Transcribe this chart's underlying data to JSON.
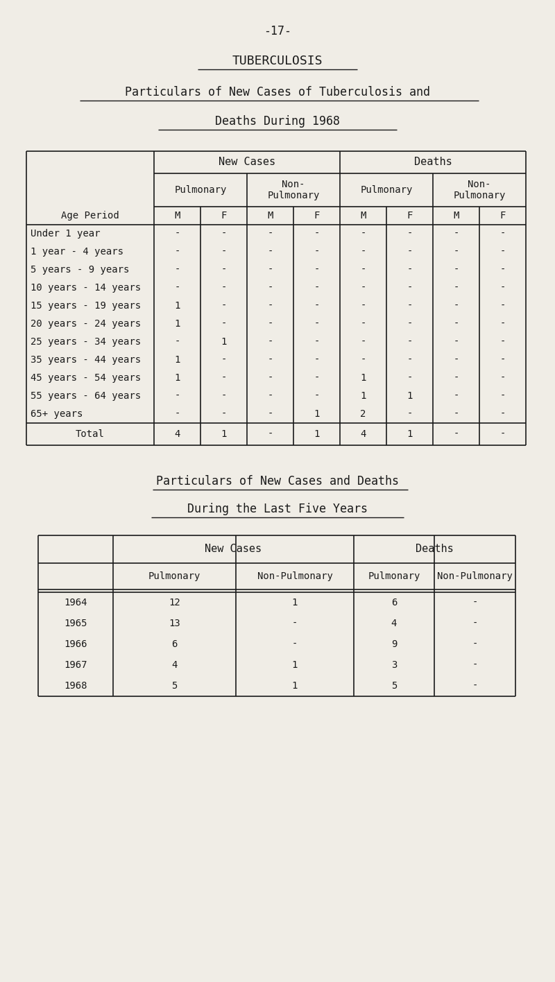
{
  "bg_color": "#f0ede6",
  "text_color": "#1a1a1a",
  "line_color": "#1a1a1a",
  "page_number": "-17-",
  "title1": "TUBERCULOSIS",
  "title2": "Particulars of New Cases of Tuberculosis and",
  "title3": "Deaths During 1968",
  "title4": "Particulars of New Cases and Deaths",
  "title5": "During the Last Five Years",
  "table1": {
    "age_periods": [
      "Under 1 year",
      "1 year - 4 years",
      "5 years - 9 years",
      "10 years - 14 years",
      "15 years - 19 years",
      "20 years - 24 years",
      "25 years - 34 years",
      "35 years - 44 years",
      "45 years - 54 years",
      "55 years - 64 years",
      "65+ years",
      "Total"
    ],
    "data": {
      "new_cases_pulmonary_M": [
        "-",
        "-",
        "-",
        "-",
        "1",
        "1",
        "-",
        "1",
        "1",
        "-",
        "-",
        "4"
      ],
      "new_cases_pulmonary_F": [
        "-",
        "-",
        "-",
        "-",
        "-",
        "-",
        "1",
        "-",
        "-",
        "-",
        "-",
        "1"
      ],
      "new_cases_nonpulmonary_M": [
        "-",
        "-",
        "-",
        "-",
        "-",
        "-",
        "-",
        "-",
        "-",
        "-",
        "-",
        "-"
      ],
      "new_cases_nonpulmonary_F": [
        "-",
        "-",
        "-",
        "-",
        "-",
        "-",
        "-",
        "-",
        "-",
        "-",
        "1",
        "1"
      ],
      "deaths_pulmonary_M": [
        "-",
        "-",
        "-",
        "-",
        "-",
        "-",
        "-",
        "-",
        "1",
        "1",
        "2",
        "4"
      ],
      "deaths_pulmonary_F": [
        "-",
        "-",
        "-",
        "-",
        "-",
        "-",
        "-",
        "-",
        "-",
        "1",
        "-",
        "1"
      ],
      "deaths_nonpulmonary_M": [
        "-",
        "-",
        "-",
        "-",
        "-",
        "-",
        "-",
        "-",
        "-",
        "-",
        "-",
        "-"
      ],
      "deaths_nonpulmonary_F": [
        "-",
        "-",
        "-",
        "-",
        "-",
        "-",
        "-",
        "-",
        "-",
        "-",
        "-",
        "-"
      ]
    }
  },
  "table2": {
    "years": [
      "1964",
      "1965",
      "1966",
      "1967",
      "1968"
    ],
    "new_cases_pulmonary": [
      "12",
      "13",
      "6",
      "4",
      "5"
    ],
    "new_cases_nonpulmonary": [
      "1",
      "-",
      "-",
      "1",
      "1"
    ],
    "deaths_pulmonary": [
      "6",
      "4",
      "9",
      "3",
      "5"
    ],
    "deaths_nonpulmonary": [
      "-",
      "-",
      "-",
      "-",
      "-"
    ]
  }
}
